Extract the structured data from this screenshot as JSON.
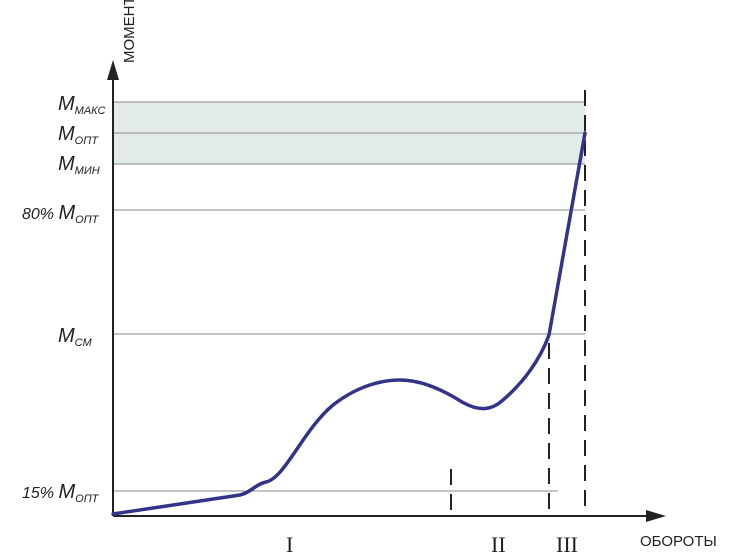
{
  "axes": {
    "y_title": "МОМЕНТ",
    "x_title": "ОБОРОТЫ"
  },
  "levels": [
    {
      "key": "m_max",
      "main": "M",
      "sub": "МАКС",
      "prefix": ""
    },
    {
      "key": "m_opt",
      "main": "M",
      "sub": "ОПТ",
      "prefix": ""
    },
    {
      "key": "m_min",
      "main": "M",
      "sub": "МИН",
      "prefix": ""
    },
    {
      "key": "m_80",
      "main": "M",
      "sub": "ОПТ",
      "prefix": "80% "
    },
    {
      "key": "m_cm",
      "main": "M",
      "sub": "СМ",
      "prefix": ""
    },
    {
      "key": "m_15",
      "main": "M",
      "sub": "ОПТ",
      "prefix": "15% "
    }
  ],
  "zones": [
    "I",
    "II",
    "III"
  ],
  "colors": {
    "curve": "#33338a",
    "band": "#e3ebea",
    "grid": "#8a8a8a",
    "axis": "#222222"
  }
}
